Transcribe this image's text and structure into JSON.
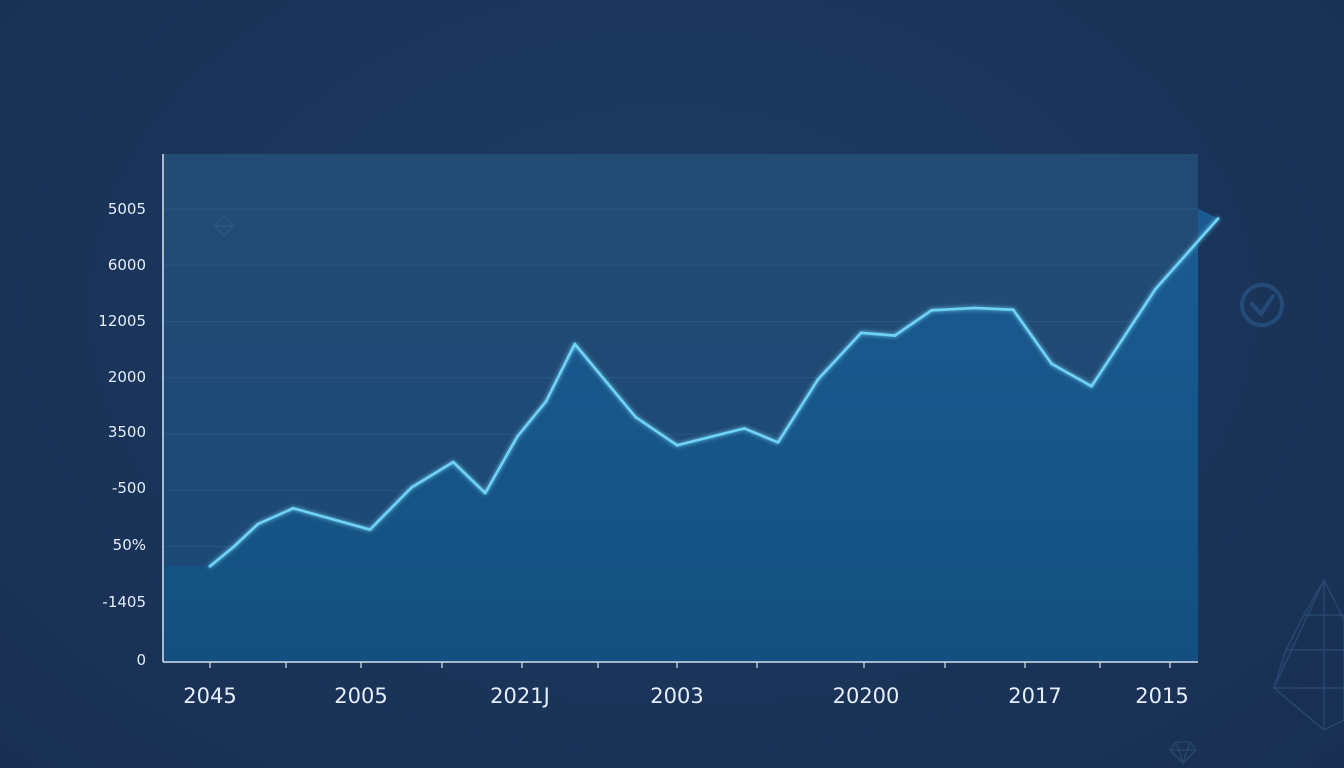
{
  "chart_data": {
    "type": "area",
    "title": "",
    "xlabel": "",
    "ylabel": "",
    "y_tick_labels": [
      "5005",
      "6000",
      "12005",
      "2000",
      "3500",
      "-500",
      "50%",
      "-1405",
      "0"
    ],
    "x_tick_labels": [
      "2045",
      "2005",
      "2021J",
      "2003",
      "20200",
      "2017",
      "2015"
    ],
    "grid": "horizontal",
    "legend": "none",
    "values_in_tick_index_units": true,
    "ylim": [
      0,
      8
    ],
    "xlim": [
      0,
      6
    ],
    "series": [
      {
        "values": [
          {
            "x": 0.0,
            "y": 1.65
          },
          {
            "x": 0.15,
            "y": 2.0
          },
          {
            "x": 0.3,
            "y": 2.4
          },
          {
            "x": 0.52,
            "y": 2.68
          },
          {
            "x": 1.0,
            "y": 2.3
          },
          {
            "x": 1.26,
            "y": 3.05
          },
          {
            "x": 1.52,
            "y": 3.5
          },
          {
            "x": 1.72,
            "y": 2.95
          },
          {
            "x": 1.92,
            "y": 3.95
          },
          {
            "x": 2.1,
            "y": 4.58
          },
          {
            "x": 2.28,
            "y": 5.6
          },
          {
            "x": 2.66,
            "y": 4.3
          },
          {
            "x": 2.92,
            "y": 3.8
          },
          {
            "x": 3.34,
            "y": 4.1
          },
          {
            "x": 3.55,
            "y": 3.85
          },
          {
            "x": 3.8,
            "y": 4.97
          },
          {
            "x": 4.07,
            "y": 5.8
          },
          {
            "x": 4.28,
            "y": 5.75
          },
          {
            "x": 4.51,
            "y": 6.2
          },
          {
            "x": 4.78,
            "y": 6.24
          },
          {
            "x": 5.02,
            "y": 6.21
          },
          {
            "x": 5.26,
            "y": 5.25
          },
          {
            "x": 5.51,
            "y": 4.85
          },
          {
            "x": 5.91,
            "y": 6.58
          },
          {
            "x": 6.3,
            "y": 7.83
          }
        ]
      }
    ]
  },
  "colors": {
    "line": "#6fd3f5",
    "area_top": "#1a5b92",
    "area_bottom": "#13507f",
    "plot_bg_top": "#234c74",
    "plot_bg_bottom": "#1b4877",
    "axis": "#d8e3f2",
    "grid": "#2f5f8c",
    "text": "#e6eefb"
  },
  "decorations": {
    "icons": [
      "diamond-icon",
      "check-circle-icon",
      "pyramid-icon",
      "gem-icon"
    ]
  }
}
